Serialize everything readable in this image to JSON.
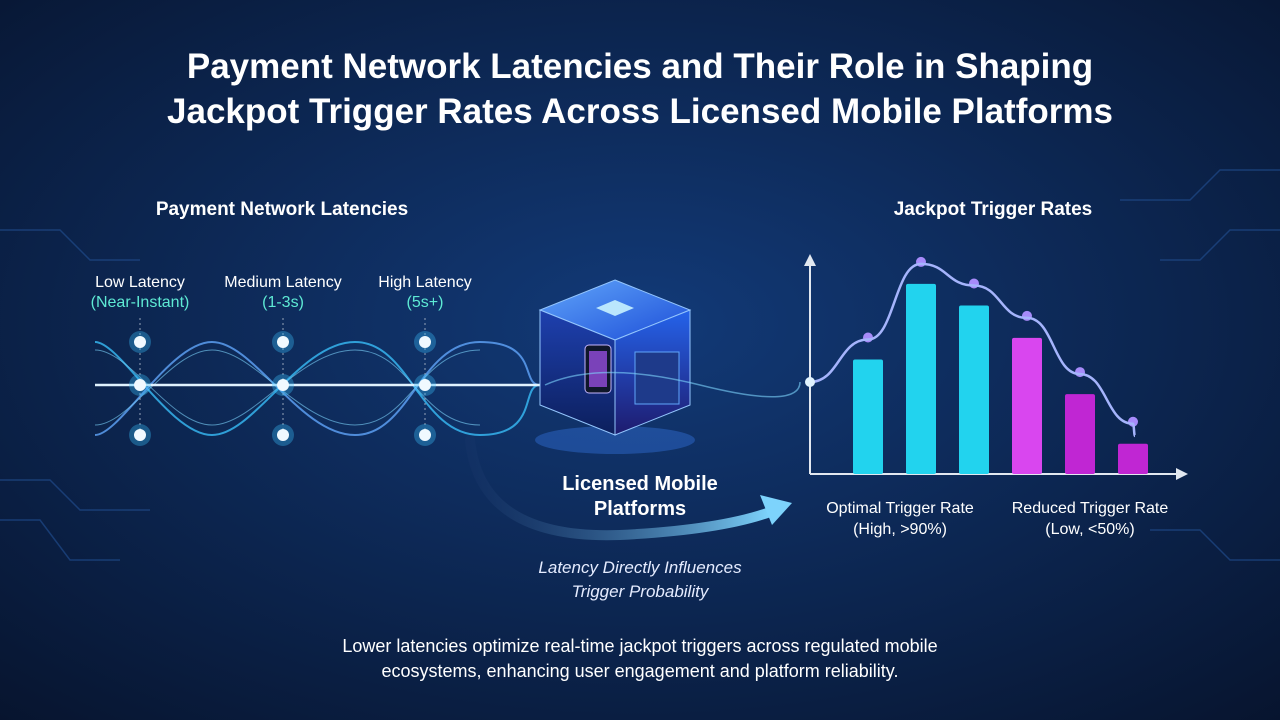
{
  "title_lines": [
    "Payment Network Latencies and Their Role in Shaping",
    "Jackpot Trigger Rates Across Licensed Mobile Platforms"
  ],
  "latency_panel": {
    "heading": "Payment Network Latencies",
    "levels": [
      {
        "label": "Low Latency",
        "detail": "(Near-Instant)"
      },
      {
        "label": "Medium Latency",
        "detail": "(1-3s)"
      },
      {
        "label": "High Latency",
        "detail": "(5s+)"
      }
    ]
  },
  "center": {
    "label_lines": [
      "Licensed Mobile",
      "Platforms"
    ],
    "caption_lines": [
      "Latency Directly Influences",
      "Trigger Probability"
    ]
  },
  "trigger_panel": {
    "heading": "Jackpot Trigger Rates",
    "bars": {
      "ylim": [
        0,
        100
      ],
      "values": [
        53,
        88,
        78,
        63,
        37,
        14
      ],
      "colors": [
        "#22d3ee",
        "#22d3ee",
        "#22d3ee",
        "#d946ef",
        "#c026d3",
        "#c026d3"
      ]
    },
    "labels": [
      {
        "label": "Optimal Trigger Rate",
        "detail": "(High, >90%)"
      },
      {
        "label": "Reduced Trigger Rate",
        "detail": "(Low, <50%)"
      }
    ]
  },
  "footer_lines": [
    "Lower latencies optimize real-time jackpot triggers across regulated mobile",
    "ecosystems, enhancing user engagement and platform reliability."
  ]
}
